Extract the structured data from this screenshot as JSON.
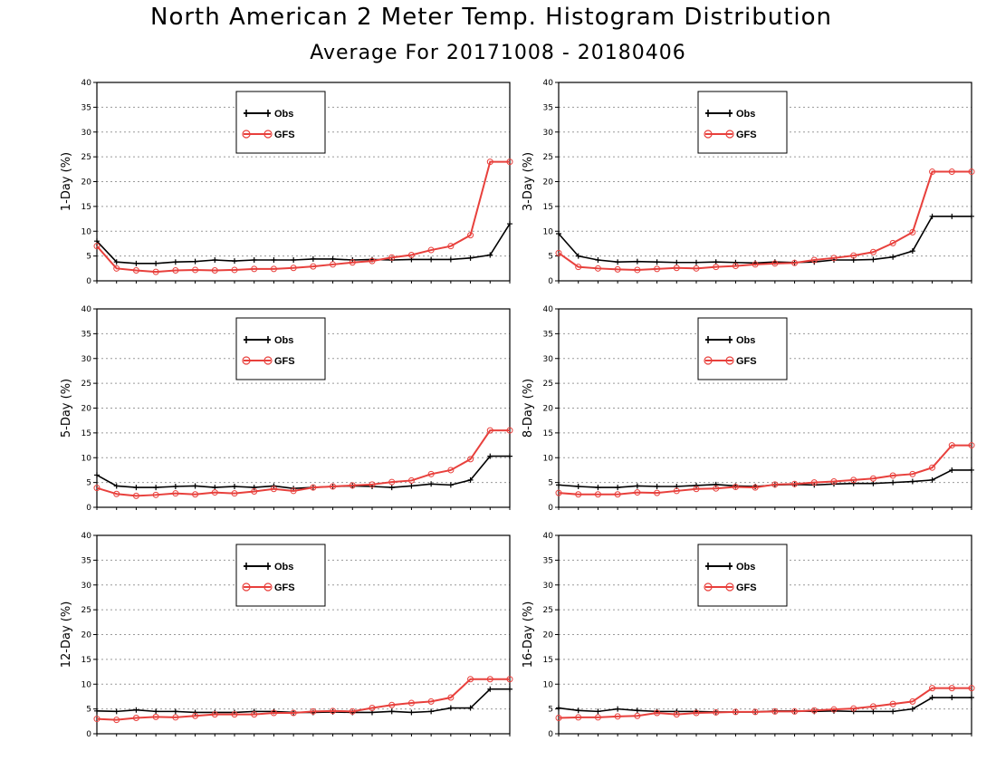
{
  "title": "North American 2 Meter Temp. Histogram Distribution",
  "subtitle": "Average For 20171008 - 20180406",
  "colors": {
    "obs": "#000000",
    "model": "#e8403c",
    "grid": "#9a9a9a"
  },
  "legend": [
    "Obs",
    "GFS"
  ],
  "chart_data": [
    {
      "type": "line",
      "ylabel": "1-Day (%)",
      "ylim": [
        0,
        40
      ],
      "yticks": [
        "0",
        "5",
        "10",
        "15",
        "20",
        "25",
        "30",
        "35",
        "40"
      ],
      "grid": true,
      "legend_position": "top-center",
      "x": [
        1,
        2,
        3,
        4,
        5,
        6,
        7,
        8,
        9,
        10,
        11,
        12,
        13,
        14,
        15,
        16,
        17,
        18,
        19,
        20,
        21,
        22
      ],
      "series": [
        {
          "name": "Obs",
          "color": "#000000",
          "values": [
            8.0,
            3.8,
            3.5,
            3.5,
            3.8,
            3.9,
            4.2,
            4.0,
            4.2,
            4.2,
            4.2,
            4.4,
            4.4,
            4.2,
            4.3,
            4.2,
            4.3,
            4.3,
            4.3,
            4.6,
            5.2,
            11.5
          ]
        },
        {
          "name": "GFS",
          "color": "#e8403c",
          "values": [
            7.0,
            2.5,
            2.1,
            1.8,
            2.1,
            2.2,
            2.1,
            2.2,
            2.4,
            2.4,
            2.6,
            2.9,
            3.3,
            3.7,
            4.0,
            4.7,
            5.2,
            6.2,
            7.0,
            9.2,
            24.0,
            24.0
          ]
        }
      ]
    },
    {
      "type": "line",
      "ylabel": "3-Day (%)",
      "ylim": [
        0,
        40
      ],
      "yticks": [
        "0",
        "5",
        "10",
        "15",
        "20",
        "25",
        "30",
        "35",
        "40"
      ],
      "grid": true,
      "legend_position": "top-center",
      "x": [
        1,
        2,
        3,
        4,
        5,
        6,
        7,
        8,
        9,
        10,
        11,
        12,
        13,
        14,
        15,
        16,
        17,
        18,
        19,
        20,
        21,
        22
      ],
      "series": [
        {
          "name": "Obs",
          "color": "#000000",
          "values": [
            9.5,
            5.0,
            4.2,
            3.8,
            3.9,
            3.8,
            3.7,
            3.7,
            3.8,
            3.7,
            3.6,
            3.8,
            3.7,
            3.8,
            4.2,
            4.2,
            4.3,
            4.8,
            6.0,
            13.0,
            13.0,
            13.0
          ]
        },
        {
          "name": "GFS",
          "color": "#e8403c",
          "values": [
            5.6,
            2.8,
            2.5,
            2.3,
            2.2,
            2.4,
            2.6,
            2.5,
            2.8,
            3.0,
            3.3,
            3.5,
            3.6,
            4.2,
            4.6,
            5.1,
            5.8,
            7.6,
            9.8,
            22.0,
            22.0,
            22.0
          ]
        }
      ]
    },
    {
      "type": "line",
      "ylabel": "5-Day (%)",
      "ylim": [
        0,
        40
      ],
      "yticks": [
        "0",
        "5",
        "10",
        "15",
        "20",
        "25",
        "30",
        "35",
        "40"
      ],
      "grid": true,
      "legend_position": "top-center",
      "x": [
        1,
        2,
        3,
        4,
        5,
        6,
        7,
        8,
        9,
        10,
        11,
        12,
        13,
        14,
        15,
        16,
        17,
        18,
        19,
        20,
        21,
        22
      ],
      "series": [
        {
          "name": "Obs",
          "color": "#000000",
          "values": [
            6.5,
            4.3,
            4.0,
            4.0,
            4.2,
            4.3,
            4.0,
            4.2,
            4.0,
            4.3,
            3.8,
            4.0,
            4.2,
            4.3,
            4.2,
            4.0,
            4.3,
            4.7,
            4.5,
            5.5,
            10.3,
            10.3
          ]
        },
        {
          "name": "GFS",
          "color": "#e8403c",
          "values": [
            3.9,
            2.7,
            2.3,
            2.5,
            2.8,
            2.6,
            3.0,
            2.8,
            3.2,
            3.7,
            3.3,
            4.0,
            4.2,
            4.4,
            4.6,
            5.1,
            5.4,
            6.7,
            7.5,
            9.7,
            15.5,
            15.5
          ]
        }
      ]
    },
    {
      "type": "line",
      "ylabel": "8-Day (%)",
      "ylim": [
        0,
        40
      ],
      "yticks": [
        "0",
        "5",
        "10",
        "15",
        "20",
        "25",
        "30",
        "35",
        "40"
      ],
      "grid": true,
      "legend_position": "top-center",
      "x": [
        1,
        2,
        3,
        4,
        5,
        6,
        7,
        8,
        9,
        10,
        11,
        12,
        13,
        14,
        15,
        16,
        17,
        18,
        19,
        20,
        21,
        22
      ],
      "series": [
        {
          "name": "Obs",
          "color": "#000000",
          "values": [
            4.5,
            4.2,
            4.0,
            4.0,
            4.3,
            4.2,
            4.2,
            4.4,
            4.6,
            4.3,
            4.2,
            4.5,
            4.6,
            4.5,
            4.7,
            4.8,
            4.8,
            5.0,
            5.2,
            5.5,
            7.5,
            7.5
          ]
        },
        {
          "name": "GFS",
          "color": "#e8403c",
          "values": [
            2.9,
            2.6,
            2.6,
            2.6,
            3.0,
            2.9,
            3.3,
            3.7,
            3.8,
            4.1,
            4.0,
            4.6,
            4.7,
            5.0,
            5.2,
            5.5,
            5.8,
            6.4,
            6.7,
            8.0,
            12.5,
            12.5
          ]
        }
      ]
    },
    {
      "type": "line",
      "ylabel": "12-Day (%)",
      "ylim": [
        0,
        40
      ],
      "yticks": [
        "0",
        "5",
        "10",
        "15",
        "20",
        "25",
        "30",
        "35",
        "40"
      ],
      "grid": true,
      "legend_position": "top-center",
      "x": [
        1,
        2,
        3,
        4,
        5,
        6,
        7,
        8,
        9,
        10,
        11,
        12,
        13,
        14,
        15,
        16,
        17,
        18,
        19,
        20,
        21,
        22
      ],
      "series": [
        {
          "name": "Obs",
          "color": "#000000",
          "values": [
            4.6,
            4.5,
            4.8,
            4.5,
            4.5,
            4.3,
            4.3,
            4.3,
            4.5,
            4.5,
            4.3,
            4.3,
            4.4,
            4.3,
            4.3,
            4.5,
            4.3,
            4.5,
            5.2,
            5.2,
            9.0,
            9.0
          ]
        },
        {
          "name": "GFS",
          "color": "#e8403c",
          "values": [
            3.0,
            2.8,
            3.2,
            3.4,
            3.3,
            3.6,
            3.9,
            3.9,
            3.9,
            4.2,
            4.2,
            4.5,
            4.6,
            4.5,
            5.2,
            5.8,
            6.2,
            6.5,
            7.3,
            11.0,
            11.0,
            11.0
          ]
        }
      ]
    },
    {
      "type": "line",
      "ylabel": "16-Day (%)",
      "ylim": [
        0,
        40
      ],
      "yticks": [
        "0",
        "5",
        "10",
        "15",
        "20",
        "25",
        "30",
        "35",
        "40"
      ],
      "grid": true,
      "legend_position": "top-center",
      "x": [
        1,
        2,
        3,
        4,
        5,
        6,
        7,
        8,
        9,
        10,
        11,
        12,
        13,
        14,
        15,
        16,
        17,
        18,
        19,
        20,
        21,
        22
      ],
      "series": [
        {
          "name": "Obs",
          "color": "#000000",
          "values": [
            5.2,
            4.7,
            4.5,
            5.0,
            4.7,
            4.5,
            4.5,
            4.5,
            4.4,
            4.4,
            4.4,
            4.6,
            4.6,
            4.5,
            4.6,
            4.5,
            4.5,
            4.5,
            5.0,
            7.3,
            7.3,
            7.3
          ]
        },
        {
          "name": "GFS",
          "color": "#e8403c",
          "values": [
            3.2,
            3.3,
            3.3,
            3.5,
            3.6,
            4.2,
            3.9,
            4.2,
            4.3,
            4.4,
            4.4,
            4.5,
            4.5,
            4.7,
            4.9,
            5.1,
            5.5,
            6.0,
            6.5,
            9.2,
            9.2,
            9.2
          ]
        }
      ]
    }
  ]
}
